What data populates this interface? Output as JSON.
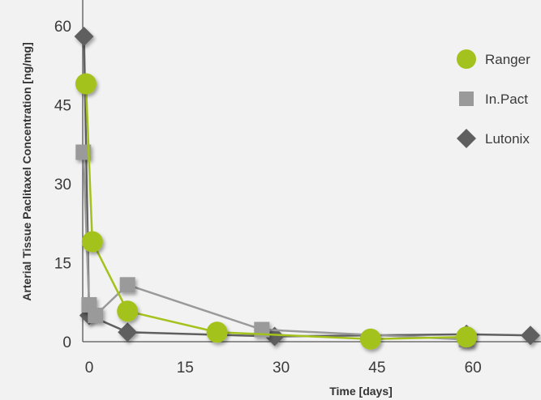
{
  "chart_data": {
    "type": "line",
    "title": "",
    "xlabel": "Time [days]",
    "ylabel": "Arterial Tissue Paclitaxel Concentration [ng/mg]",
    "xlim": [
      0,
      70
    ],
    "ylim": [
      0,
      60
    ],
    "xticks": [
      0,
      15,
      30,
      45,
      60
    ],
    "yticks": [
      0,
      15,
      30,
      45,
      60
    ],
    "grid": false,
    "legend_position": "right",
    "series": [
      {
        "name": "Ranger",
        "color": "#a4c21d",
        "marker": "circle",
        "x": [
          0.5,
          1.5,
          7,
          21,
          45,
          60
        ],
        "y": [
          49,
          19,
          5.8,
          1.8,
          0.5,
          0.9
        ]
      },
      {
        "name": "In.Pact",
        "color": "#9a9a9a",
        "marker": "square",
        "x": [
          0.1,
          1,
          2,
          7,
          28,
          60
        ],
        "y": [
          36,
          7,
          5,
          10.8,
          2.3,
          0.4
        ]
      },
      {
        "name": "Lutonix",
        "color": "#5f5f5f",
        "marker": "diamond",
        "x": [
          0.2,
          1,
          7,
          30,
          60,
          70
        ],
        "y": [
          58,
          5,
          1.8,
          1,
          1.4,
          1.2
        ]
      }
    ]
  }
}
